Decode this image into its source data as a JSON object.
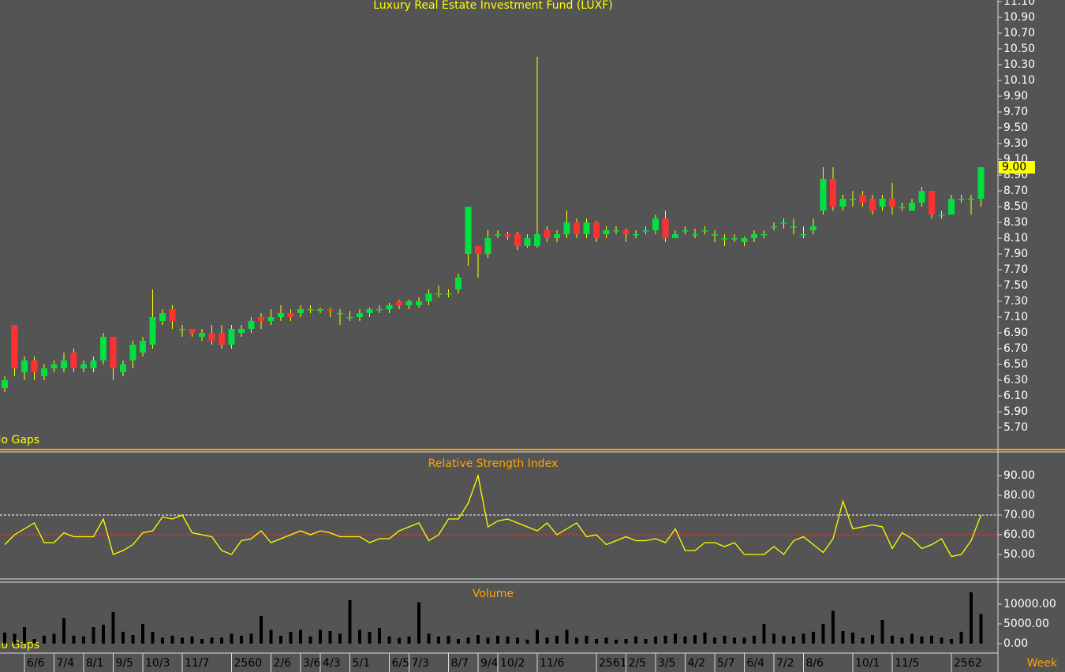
{
  "chart_data": [
    {
      "type": "candlestick",
      "title": "Luxury Real Estate Investment Fund (LUXF)",
      "annotation": "No Gaps",
      "categories": [
        null,
        null,
        "6/6",
        null,
        null,
        "7/4",
        null,
        null,
        "8/1",
        null,
        null,
        "9/5",
        null,
        null,
        "10/3",
        null,
        null,
        null,
        "11/7",
        null,
        null,
        null,
        null,
        "2560",
        null,
        null,
        null,
        "2/6",
        null,
        null,
        "3/6",
        null,
        "4/3",
        null,
        null,
        "5/1",
        null,
        null,
        null,
        "6/5",
        null,
        "7/3",
        null,
        null,
        null,
        "8/7",
        null,
        null,
        "9/4",
        null,
        "10/2",
        null,
        null,
        null,
        "11/6",
        null,
        null,
        null,
        null,
        null,
        "2561",
        null,
        null,
        "2/5",
        null,
        null,
        "3/5",
        null,
        null,
        "4/2",
        null,
        null,
        "5/7",
        null,
        null,
        "6/4",
        null,
        null,
        "7/2",
        null,
        null,
        "8/6",
        null,
        null,
        null,
        null,
        "10/1",
        null,
        null,
        null,
        "11/5",
        null,
        null,
        null,
        null,
        null,
        "2562",
        null,
        null,
        null
      ],
      "open": [
        6.2,
        7.0,
        6.4,
        6.55,
        6.35,
        6.45,
        6.45,
        6.65,
        6.45,
        6.45,
        6.55,
        6.85,
        6.4,
        6.55,
        6.65,
        6.75,
        7.05,
        7.2,
        6.95,
        6.95,
        6.85,
        6.9,
        6.9,
        6.75,
        6.9,
        6.95,
        7.1,
        7.05,
        7.1,
        7.15,
        7.15,
        7.2,
        7.18,
        7.2,
        7.15,
        7.1,
        7.1,
        7.15,
        7.2,
        7.2,
        7.3,
        7.25,
        7.25,
        7.3,
        7.4,
        7.4,
        7.45,
        7.9,
        8.0,
        7.9,
        8.15,
        8.15,
        8.15,
        8.0,
        8.0,
        8.2,
        8.1,
        8.15,
        8.3,
        8.15,
        8.3,
        8.15,
        8.2,
        8.2,
        8.15,
        8.2,
        8.2,
        8.35,
        8.1,
        8.2,
        8.15,
        8.2,
        8.15,
        8.1,
        8.1,
        8.05,
        8.1,
        8.15,
        8.25,
        8.3,
        8.25,
        8.15,
        8.2,
        8.45,
        8.85,
        8.5,
        8.6,
        8.65,
        8.6,
        8.5,
        8.6,
        8.5,
        8.45,
        8.55,
        8.7,
        8.4,
        8.4,
        8.6,
        8.6,
        8.6
      ],
      "high": [
        6.35,
        7.0,
        6.6,
        6.6,
        6.5,
        6.55,
        6.65,
        6.7,
        6.55,
        6.6,
        6.9,
        6.85,
        6.55,
        6.8,
        6.85,
        7.45,
        7.2,
        7.25,
        7.0,
        6.95,
        6.95,
        7.0,
        7.0,
        7.0,
        7.0,
        7.1,
        7.15,
        7.2,
        7.25,
        7.2,
        7.25,
        7.25,
        7.22,
        7.22,
        7.2,
        7.18,
        7.2,
        7.22,
        7.25,
        7.28,
        7.32,
        7.32,
        7.35,
        7.45,
        7.5,
        7.45,
        7.65,
        8.5,
        8.0,
        8.2,
        8.2,
        8.18,
        8.18,
        8.15,
        10.4,
        8.25,
        8.2,
        8.45,
        8.35,
        8.35,
        8.32,
        8.25,
        8.25,
        8.22,
        8.2,
        8.25,
        8.4,
        8.45,
        8.2,
        8.25,
        8.22,
        8.25,
        8.2,
        8.15,
        8.15,
        8.12,
        8.2,
        8.2,
        8.3,
        8.35,
        8.35,
        8.25,
        8.35,
        9.0,
        9.0,
        8.65,
        8.7,
        8.7,
        8.65,
        8.65,
        8.8,
        8.55,
        8.6,
        8.75,
        8.7,
        8.45,
        8.65,
        8.65,
        8.65,
        9.0
      ],
      "low": [
        6.15,
        6.35,
        6.3,
        6.3,
        6.3,
        6.4,
        6.4,
        6.4,
        6.4,
        6.4,
        6.5,
        6.3,
        6.35,
        6.45,
        6.6,
        6.7,
        7.0,
        6.95,
        6.85,
        6.85,
        6.8,
        6.75,
        6.7,
        6.7,
        6.85,
        6.9,
        6.95,
        7.0,
        7.05,
        7.05,
        7.1,
        7.15,
        7.15,
        7.1,
        7.0,
        7.05,
        7.05,
        7.1,
        7.15,
        7.15,
        7.2,
        7.2,
        7.22,
        7.25,
        7.35,
        7.35,
        7.4,
        7.75,
        7.6,
        7.85,
        8.1,
        8.08,
        7.95,
        7.98,
        7.98,
        8.05,
        8.05,
        8.1,
        8.1,
        8.1,
        8.05,
        8.1,
        8.15,
        8.05,
        8.1,
        8.15,
        8.15,
        8.05,
        8.1,
        8.15,
        8.1,
        8.15,
        8.05,
        8.0,
        8.05,
        8.0,
        8.05,
        8.1,
        8.2,
        8.22,
        8.15,
        8.1,
        8.15,
        8.4,
        8.45,
        8.45,
        8.5,
        8.5,
        8.4,
        8.45,
        8.4,
        8.45,
        8.45,
        8.5,
        8.35,
        8.35,
        8.45,
        8.55,
        8.4,
        8.5
      ],
      "close": [
        6.3,
        6.45,
        6.55,
        6.4,
        6.45,
        6.5,
        6.55,
        6.45,
        6.5,
        6.55,
        6.85,
        6.45,
        6.5,
        6.75,
        6.8,
        7.1,
        7.15,
        7.05,
        6.95,
        6.9,
        6.9,
        6.8,
        6.75,
        6.95,
        6.95,
        7.05,
        7.05,
        7.1,
        7.15,
        7.1,
        7.2,
        7.2,
        7.2,
        7.18,
        7.15,
        7.1,
        7.15,
        7.2,
        7.2,
        7.25,
        7.25,
        7.3,
        7.3,
        7.4,
        7.4,
        7.4,
        7.6,
        8.5,
        7.9,
        8.1,
        8.15,
        8.12,
        8.0,
        8.1,
        8.15,
        8.1,
        8.15,
        8.3,
        8.15,
        8.3,
        8.1,
        8.2,
        8.2,
        8.15,
        8.15,
        8.2,
        8.35,
        8.1,
        8.15,
        8.2,
        8.15,
        8.2,
        8.15,
        8.1,
        8.1,
        8.1,
        8.15,
        8.15,
        8.25,
        8.3,
        8.25,
        8.15,
        8.25,
        8.85,
        8.5,
        8.6,
        8.6,
        8.55,
        8.45,
        8.6,
        8.5,
        8.5,
        8.55,
        8.7,
        8.4,
        8.4,
        8.6,
        8.6,
        8.6,
        9.0
      ],
      "up_color": "#00e040",
      "down_color": "#ff3030",
      "wick_color": "#ffff00",
      "last_price": {
        "value": 9.0,
        "label": "9.00"
      },
      "ylim": [
        5.44,
        11.12
      ],
      "yticks": [
        {
          "value": 5.7,
          "label": "5.70"
        },
        {
          "value": 5.9,
          "label": "5.90"
        },
        {
          "value": 6.1,
          "label": "6.10"
        },
        {
          "value": 6.3,
          "label": "6.30"
        },
        {
          "value": 6.5,
          "label": "6.50"
        },
        {
          "value": 6.7,
          "label": "6.70"
        },
        {
          "value": 6.9,
          "label": "6.90"
        },
        {
          "value": 7.1,
          "label": "7.10"
        },
        {
          "value": 7.3,
          "label": "7.30"
        },
        {
          "value": 7.5,
          "label": "7.50"
        },
        {
          "value": 7.7,
          "label": "7.70"
        },
        {
          "value": 7.9,
          "label": "7.90"
        },
        {
          "value": 8.1,
          "label": "8.10"
        },
        {
          "value": 8.3,
          "label": "8.30"
        },
        {
          "value": 8.5,
          "label": "8.50"
        },
        {
          "value": 8.7,
          "label": "8.70"
        },
        {
          "value": 8.9,
          "label": "8.90"
        },
        {
          "value": 9.1,
          "label": "9.10"
        },
        {
          "value": 9.3,
          "label": "9.30"
        },
        {
          "value": 9.5,
          "label": "9.50"
        },
        {
          "value": 9.7,
          "label": "9.70"
        },
        {
          "value": 9.9,
          "label": "9.90"
        },
        {
          "value": 10.1,
          "label": "10.10"
        },
        {
          "value": 10.3,
          "label": "10.30"
        },
        {
          "value": 10.5,
          "label": "10.50"
        },
        {
          "value": 10.7,
          "label": "10.70"
        },
        {
          "value": 10.9,
          "label": "10.90"
        },
        {
          "value": 11.1,
          "label": "11.10"
        }
      ]
    },
    {
      "type": "line",
      "title": "Relative Strength Index",
      "color": "#ffff00",
      "values": [
        55,
        60,
        63,
        66,
        56,
        56,
        61,
        59,
        59,
        59,
        68,
        50,
        52,
        55,
        61,
        62,
        69,
        68,
        70,
        61,
        60,
        59,
        52,
        50,
        57,
        58,
        62,
        56,
        58,
        60,
        62,
        60,
        62,
        61,
        59,
        59,
        59,
        56,
        58,
        58,
        62,
        64,
        66,
        57,
        60,
        68,
        68,
        76,
        90,
        64,
        67,
        68,
        66,
        64,
        62,
        66,
        60,
        63,
        66,
        59,
        60,
        55,
        57,
        59,
        57,
        57,
        58,
        56,
        63,
        52,
        52,
        56,
        56,
        54,
        56,
        50,
        50,
        50,
        54,
        50,
        57,
        59,
        55,
        51,
        58,
        77,
        63,
        64,
        65,
        64,
        53,
        61,
        58,
        53,
        55,
        58,
        49,
        50,
        57,
        70
      ],
      "reference_lines": [
        {
          "value": 70,
          "color": "#ffffff"
        },
        {
          "value": 60,
          "color": "#ff3030"
        }
      ],
      "ylim": [
        38.4,
        101.2
      ],
      "yticks": [
        {
          "value": 50,
          "label": "50.00"
        },
        {
          "value": 60,
          "label": "60.00"
        },
        {
          "value": 70,
          "label": "70.00"
        },
        {
          "value": 80,
          "label": "80.00"
        },
        {
          "value": 90,
          "label": "90.00"
        }
      ]
    },
    {
      "type": "bar",
      "title": "Volume",
      "color": "#000000",
      "annotation": "No Gaps",
      "x_label": "Week",
      "values": [
        2800,
        2500,
        4200,
        1200,
        2000,
        2500,
        6500,
        2000,
        1800,
        4200,
        4800,
        8000,
        3000,
        2200,
        5000,
        3000,
        1500,
        2000,
        1500,
        1800,
        1200,
        1500,
        1500,
        2500,
        2000,
        2500,
        7000,
        3500,
        2000,
        3000,
        3500,
        1800,
        3500,
        3200,
        2500,
        11000,
        3500,
        3000,
        4000,
        1800,
        1500,
        1800,
        10500,
        2500,
        1800,
        2000,
        1200,
        1500,
        2200,
        1500,
        2000,
        1800,
        1500,
        1000,
        3500,
        1500,
        2000,
        3500,
        1500,
        2000,
        1200,
        1500,
        1000,
        1200,
        1800,
        1200,
        1800,
        2000,
        2500,
        1800,
        2200,
        2800,
        1500,
        2000,
        1500,
        1500,
        2000,
        5000,
        2500,
        2000,
        1800,
        2500,
        3000,
        5000,
        8300,
        3200,
        2800,
        1500,
        2200,
        6000,
        2000,
        1500,
        2500,
        1800,
        2000,
        1500,
        1200,
        3000,
        13000,
        7500
      ],
      "ylim": [
        -2400,
        15200
      ],
      "yticks": [
        {
          "value": 0,
          "label": "0.00"
        },
        {
          "value": 5000,
          "label": "5000.00"
        },
        {
          "value": 10000,
          "label": "10000.00"
        }
      ]
    }
  ]
}
